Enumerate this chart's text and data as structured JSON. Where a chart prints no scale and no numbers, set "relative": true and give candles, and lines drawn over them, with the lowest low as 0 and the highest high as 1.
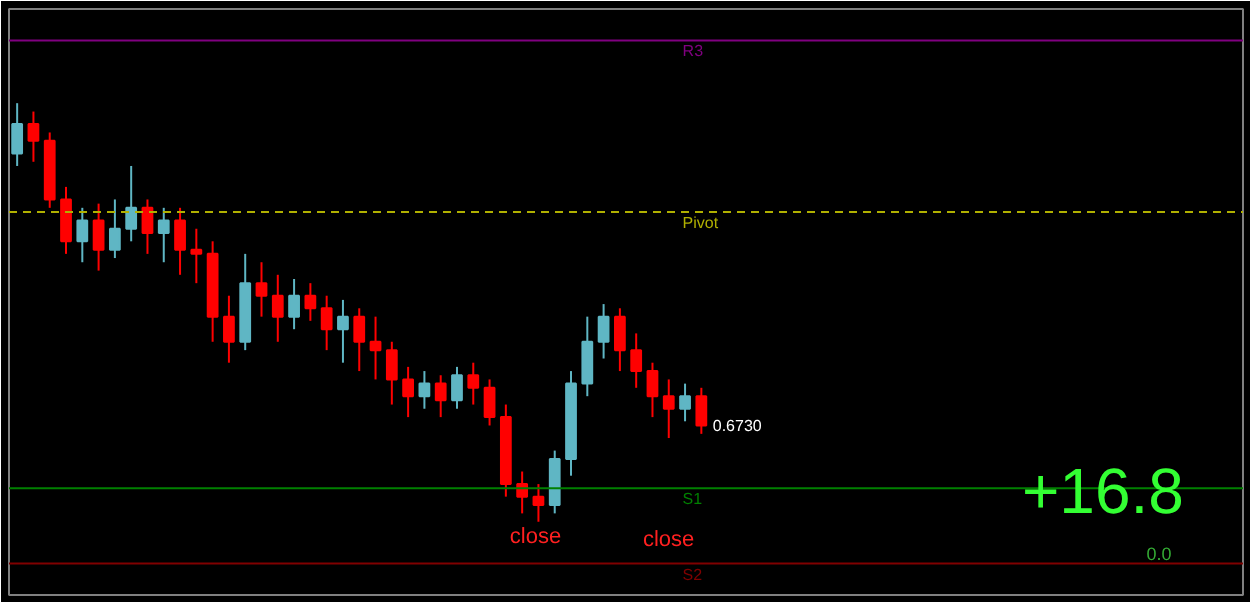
{
  "chart_data": {
    "type": "candlestick",
    "relative": true,
    "categories": [
      null,
      null,
      null,
      null,
      null,
      null,
      null,
      null,
      null,
      null,
      null,
      null,
      null,
      null,
      null,
      null,
      null,
      null,
      null,
      null,
      null,
      null,
      null,
      null,
      null,
      null,
      null,
      null,
      null,
      null,
      null,
      null,
      null,
      null,
      null,
      null,
      null,
      null,
      null,
      null,
      null,
      null,
      null
    ],
    "ohlc": [
      [
        0.88,
        1.0,
        0.85,
        0.95
      ],
      [
        0.95,
        0.98,
        0.86,
        0.91
      ],
      [
        0.91,
        0.93,
        0.75,
        0.77
      ],
      [
        0.77,
        0.8,
        0.64,
        0.67
      ],
      [
        0.67,
        0.75,
        0.62,
        0.72
      ],
      [
        0.72,
        0.76,
        0.6,
        0.65
      ],
      [
        0.65,
        0.77,
        0.63,
        0.7
      ],
      [
        0.7,
        0.85,
        0.67,
        0.75
      ],
      [
        0.75,
        0.77,
        0.64,
        0.69
      ],
      [
        0.69,
        0.75,
        0.62,
        0.72
      ],
      [
        0.72,
        0.75,
        0.59,
        0.65
      ],
      [
        0.65,
        0.7,
        0.57,
        0.64
      ],
      [
        0.64,
        0.67,
        0.43,
        0.49
      ],
      [
        0.49,
        0.54,
        0.38,
        0.43
      ],
      [
        0.43,
        0.64,
        0.41,
        0.57
      ],
      [
        0.57,
        0.62,
        0.49,
        0.54
      ],
      [
        0.54,
        0.59,
        0.43,
        0.49
      ],
      [
        0.49,
        0.58,
        0.46,
        0.54
      ],
      [
        0.54,
        0.57,
        0.48,
        0.51
      ],
      [
        0.51,
        0.54,
        0.41,
        0.46
      ],
      [
        0.46,
        0.53,
        0.38,
        0.49
      ],
      [
        0.49,
        0.51,
        0.36,
        0.43
      ],
      [
        0.43,
        0.49,
        0.34,
        0.41
      ],
      [
        0.41,
        0.43,
        0.28,
        0.34
      ],
      [
        0.34,
        0.37,
        0.25,
        0.3
      ],
      [
        0.3,
        0.36,
        0.27,
        0.33
      ],
      [
        0.33,
        0.35,
        0.25,
        0.29
      ],
      [
        0.29,
        0.37,
        0.27,
        0.35
      ],
      [
        0.35,
        0.38,
        0.28,
        0.32
      ],
      [
        0.32,
        0.34,
        0.23,
        0.25
      ],
      [
        0.25,
        0.28,
        0.06,
        0.09
      ],
      [
        0.09,
        0.12,
        0.02,
        0.06
      ],
      [
        0.06,
        0.09,
        0.0,
        0.04
      ],
      [
        0.04,
        0.17,
        0.02,
        0.15
      ],
      [
        0.15,
        0.36,
        0.11,
        0.33
      ],
      [
        0.33,
        0.49,
        0.3,
        0.43
      ],
      [
        0.43,
        0.52,
        0.39,
        0.49
      ],
      [
        0.49,
        0.51,
        0.36,
        0.41
      ],
      [
        0.41,
        0.45,
        0.32,
        0.36
      ],
      [
        0.36,
        0.38,
        0.25,
        0.3
      ],
      [
        0.3,
        0.34,
        0.2,
        0.27
      ],
      [
        0.27,
        0.33,
        0.24,
        0.3
      ],
      [
        0.3,
        0.32,
        0.21,
        0.23
      ]
    ],
    "colors": [
      "#5fb6c4",
      "#ff0000",
      "#ff0000",
      "#ff0000",
      "#5fb6c4",
      "#ff0000",
      "#5fb6c4",
      "#5fb6c4",
      "#ff0000",
      "#5fb6c4",
      "#ff0000",
      "#ff0000",
      "#ff0000",
      "#ff0000",
      "#5fb6c4",
      "#ff0000",
      "#ff0000",
      "#5fb6c4",
      "#ff0000",
      "#ff0000",
      "#5fb6c4",
      "#ff0000",
      "#ff0000",
      "#ff0000",
      "#ff0000",
      "#5fb6c4",
      "#ff0000",
      "#5fb6c4",
      "#ff0000",
      "#ff0000",
      "#ff0000",
      "#ff0000",
      "#ff0000",
      "#5fb6c4",
      "#5fb6c4",
      "#5fb6c4",
      "#5fb6c4",
      "#ff0000",
      "#ff0000",
      "#ff0000",
      "#ff0000",
      "#5fb6c4",
      "#ff0000"
    ],
    "ref_lines": [
      {
        "axis": "y",
        "value": 1.15,
        "label": "R3",
        "color": "#800080"
      },
      {
        "axis": "y",
        "value": 0.74,
        "label": "Pivot",
        "color": "#b0b000",
        "line_style": "dashed"
      },
      {
        "axis": "y",
        "value": 0.08,
        "label": "S1",
        "color": "#008000"
      },
      {
        "axis": "y",
        "value": -0.1,
        "label": "S2",
        "color": "#800000"
      }
    ],
    "annotations": [
      "+16.8",
      "0.0",
      "0.6730",
      "close",
      "close"
    ],
    "grid": false
  }
}
